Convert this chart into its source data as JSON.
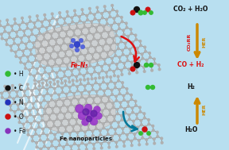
{
  "bg_color": "#b8dff0",
  "legend_items": [
    {
      "label": "H",
      "color": "#33bb33"
    },
    {
      "label": "C",
      "color": "#111111"
    },
    {
      "label": "N",
      "color": "#2233bb"
    },
    {
      "label": "O",
      "color": "#cc1111"
    },
    {
      "label": "Fe",
      "color": "#8833bb"
    }
  ],
  "top_label": "Fe-N₅",
  "bottom_label": "Fe nanoparticles",
  "top_reaction_top": "CO₂ + H₂O",
  "top_reaction_bottom": "CO + H₂",
  "bottom_reaction_top": "H₂",
  "bottom_reaction_bottom": "H₂O",
  "arrow_label_co2rr": "CO₂RR",
  "arrow_label_her": "HER",
  "arrow_color": "#cc8800",
  "red_color": "#dd1111",
  "teal_color": "#007799"
}
